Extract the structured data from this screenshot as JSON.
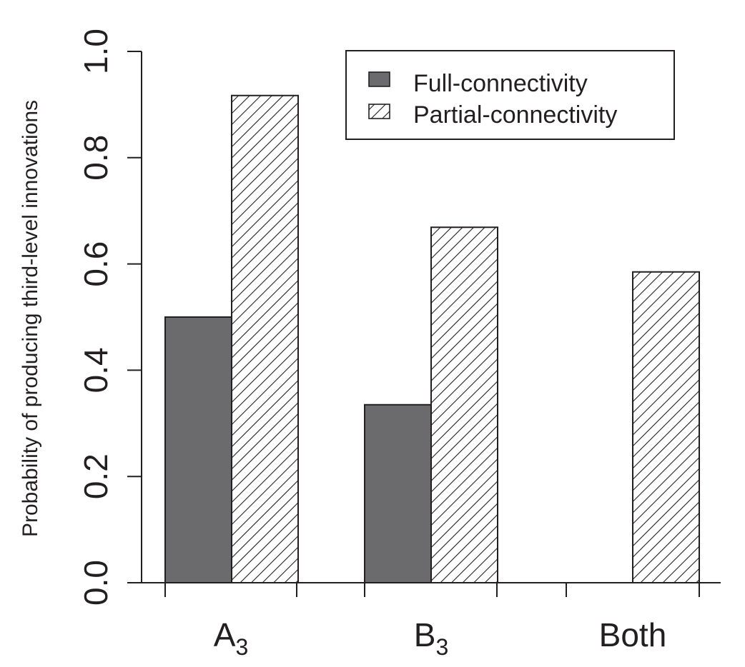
{
  "chart_data": {
    "type": "bar",
    "categories": [
      "A",
      "B",
      "Both"
    ],
    "category_subscripts": [
      "3",
      "3",
      ""
    ],
    "series": [
      {
        "name": "Full-connectivity",
        "values": [
          0.5,
          0.335,
          0.0
        ],
        "fill": "solid",
        "color": "#6b6b6e"
      },
      {
        "name": "Partial-connectivity",
        "values": [
          0.917,
          0.669,
          0.585
        ],
        "fill": "hatched",
        "color": "#231f20"
      }
    ],
    "ylabel": "Probability of producing third-level innovations",
    "xlabel": "",
    "ylim": [
      0,
      1.0
    ],
    "yticks": [
      "0.0",
      "0.2",
      "0.4",
      "0.6",
      "0.8",
      "1.0"
    ],
    "legend_position": "top-right",
    "grid": false
  }
}
